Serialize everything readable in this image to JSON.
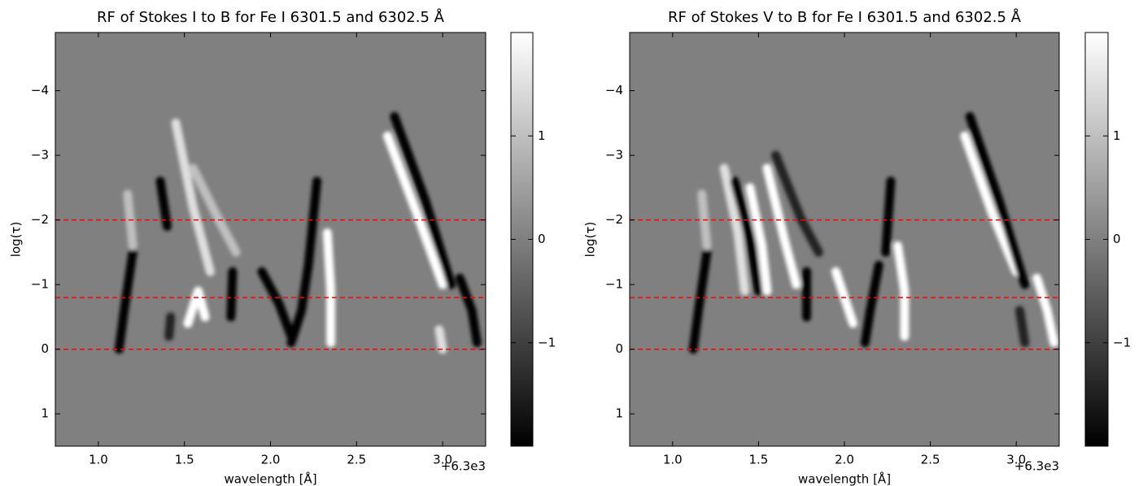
{
  "chart_data": [
    {
      "type": "heatmap",
      "title": "RF of Stokes I to B for Fe I 6301.5 and 6302.5 Å",
      "x_label": "wavelength [Å]",
      "y_label": "log(τ)",
      "x_offset_label": "+6.3e3",
      "xlim": [
        0.75,
        3.25
      ],
      "ylim": [
        1.5,
        -4.9
      ],
      "xticks": [
        {
          "value": 1,
          "label": "1.0"
        },
        1.5,
        {
          "value": 2,
          "label": "2.0"
        },
        2.5,
        {
          "value": 3,
          "label": "3.0"
        }
      ],
      "yticks": [
        {
          "value": -4,
          "label": "−4"
        },
        {
          "value": -3,
          "label": "−3"
        },
        {
          "value": -2,
          "label": "−2"
        },
        {
          "value": -1,
          "label": "−1"
        },
        0,
        1
      ],
      "clim": [
        -2,
        2
      ],
      "cticks": [
        1,
        0,
        {
          "value": -1,
          "label": "−1"
        }
      ],
      "hlines": [
        -2,
        -0.8,
        0
      ],
      "hline_color": "#ff0000",
      "features": [
        {
          "points": [
            [
              1.12,
              0
            ],
            [
              1.15,
              -0.6
            ],
            [
              1.2,
              -1.5
            ]
          ],
          "value": -2
        },
        {
          "points": [
            [
              1.2,
              -1.6
            ],
            [
              1.17,
              -2.4
            ]
          ],
          "value": 1
        },
        {
          "points": [
            [
              1.36,
              -2.6
            ],
            [
              1.4,
              -1.9
            ]
          ],
          "value": -2
        },
        {
          "points": [
            [
              1.42,
              -0.5
            ],
            [
              1.41,
              -0.2
            ]
          ],
          "value": -1.5
        },
        {
          "points": [
            [
              1.45,
              -3.5
            ],
            [
              1.55,
              -2.2
            ],
            [
              1.65,
              -1.2
            ]
          ],
          "value": 1.5
        },
        {
          "points": [
            [
              1.55,
              -2.8
            ],
            [
              1.7,
              -2.0
            ],
            [
              1.8,
              -1.5
            ]
          ],
          "value": 1
        },
        {
          "points": [
            [
              1.52,
              -0.4
            ],
            [
              1.58,
              -0.9
            ],
            [
              1.62,
              -0.5
            ]
          ],
          "value": 2
        },
        {
          "points": [
            [
              1.78,
              -1.2
            ],
            [
              1.77,
              -0.5
            ]
          ],
          "value": -2
        },
        {
          "points": [
            [
              1.95,
              -1.2
            ],
            [
              2.05,
              -0.7
            ],
            [
              2.12,
              -0.2
            ]
          ],
          "value": -2
        },
        {
          "points": [
            [
              2.22,
              -1.3
            ],
            [
              2.18,
              -0.6
            ],
            [
              2.12,
              -0.1
            ]
          ],
          "value": -2
        },
        {
          "points": [
            [
              2.27,
              -2.6
            ],
            [
              2.22,
              -1.3
            ]
          ],
          "value": -2
        },
        {
          "points": [
            [
              2.33,
              -1.8
            ],
            [
              2.35,
              -0.9
            ],
            [
              2.35,
              -0.1
            ]
          ],
          "value": 2
        },
        {
          "points": [
            [
              2.68,
              -3.3
            ],
            [
              2.85,
              -2.1
            ],
            [
              3.0,
              -1.0
            ]
          ],
          "value": 2
        },
        {
          "points": [
            [
              2.72,
              -3.6
            ],
            [
              2.9,
              -2.3
            ],
            [
              3.05,
              -1.0
            ]
          ],
          "value": -2
        },
        {
          "points": [
            [
              3.1,
              -1.1
            ],
            [
              3.17,
              -0.6
            ],
            [
              3.2,
              -0.1
            ]
          ],
          "value": -2
        },
        {
          "points": [
            [
              2.98,
              -0.3
            ],
            [
              3.0,
              0
            ]
          ],
          "value": 1.5
        }
      ]
    },
    {
      "type": "heatmap",
      "title": "RF of Stokes V to B for Fe I 6301.5 and 6302.5 Å",
      "x_label": "wavelength [Å]",
      "y_label": "log(τ)",
      "x_offset_label": "+6.3e3",
      "xlim": [
        0.75,
        3.25
      ],
      "ylim": [
        1.5,
        -4.9
      ],
      "xticks": [
        {
          "value": 1,
          "label": "1.0"
        },
        1.5,
        {
          "value": 2,
          "label": "2.0"
        },
        2.5,
        {
          "value": 3,
          "label": "3.0"
        }
      ],
      "yticks": [
        {
          "value": -4,
          "label": "−4"
        },
        {
          "value": -3,
          "label": "−3"
        },
        {
          "value": -2,
          "label": "−2"
        },
        {
          "value": -1,
          "label": "−1"
        },
        0,
        1
      ],
      "clim": [
        -2,
        2
      ],
      "cticks": [
        1,
        0,
        {
          "value": -1,
          "label": "−1"
        }
      ],
      "hlines": [
        -2,
        -0.8,
        0
      ],
      "hline_color": "#ff0000",
      "features": [
        {
          "points": [
            [
              1.12,
              0
            ],
            [
              1.15,
              -0.6
            ],
            [
              1.2,
              -1.5
            ]
          ],
          "value": -2
        },
        {
          "points": [
            [
              1.2,
              -1.6
            ],
            [
              1.17,
              -2.4
            ]
          ],
          "value": 1
        },
        {
          "points": [
            [
              1.3,
              -2.8
            ],
            [
              1.38,
              -1.8
            ],
            [
              1.42,
              -0.9
            ]
          ],
          "value": 1.5
        },
        {
          "points": [
            [
              1.36,
              -2.6
            ],
            [
              1.45,
              -1.7
            ],
            [
              1.5,
              -0.9
            ]
          ],
          "value": -2
        },
        {
          "points": [
            [
              1.45,
              -2.5
            ],
            [
              1.52,
              -1.6
            ],
            [
              1.55,
              -0.9
            ]
          ],
          "value": 2
        },
        {
          "points": [
            [
              1.55,
              -2.8
            ],
            [
              1.65,
              -1.7
            ],
            [
              1.72,
              -1.0
            ]
          ],
          "value": 2
        },
        {
          "points": [
            [
              1.6,
              -3.0
            ],
            [
              1.75,
              -2.0
            ],
            [
              1.85,
              -1.5
            ]
          ],
          "value": -1.5
        },
        {
          "points": [
            [
              1.78,
              -1.2
            ],
            [
              1.78,
              -0.5
            ]
          ],
          "value": -2
        },
        {
          "points": [
            [
              1.95,
              -1.2
            ],
            [
              2.0,
              -0.8
            ],
            [
              2.05,
              -0.4
            ]
          ],
          "value": 2
        },
        {
          "points": [
            [
              2.2,
              -1.3
            ],
            [
              2.15,
              -0.6
            ],
            [
              2.12,
              -0.1
            ]
          ],
          "value": -2
        },
        {
          "points": [
            [
              2.27,
              -2.6
            ],
            [
              2.24,
              -1.5
            ]
          ],
          "value": -2
        },
        {
          "points": [
            [
              2.31,
              -1.6
            ],
            [
              2.35,
              -0.9
            ],
            [
              2.35,
              -0.2
            ]
          ],
          "value": 2
        },
        {
          "points": [
            [
              2.7,
              -3.3
            ],
            [
              2.86,
              -2.1
            ],
            [
              3.0,
              -1.2
            ]
          ],
          "value": 2
        },
        {
          "points": [
            [
              2.73,
              -3.6
            ],
            [
              2.9,
              -2.3
            ],
            [
              3.05,
              -1.0
            ]
          ],
          "value": -2
        },
        {
          "points": [
            [
              3.12,
              -1.1
            ],
            [
              3.18,
              -0.6
            ],
            [
              3.22,
              -0.1
            ]
          ],
          "value": 2
        },
        {
          "points": [
            [
              3.02,
              -0.6
            ],
            [
              3.05,
              -0.1
            ]
          ],
          "value": -1.5
        }
      ]
    }
  ]
}
